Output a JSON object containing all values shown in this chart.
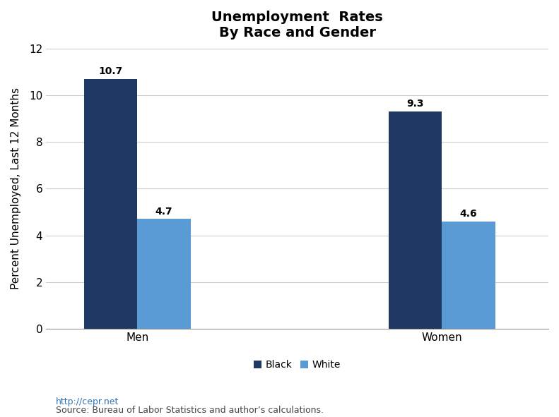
{
  "title": "Unemployment  Rates\nBy Race and Gender",
  "categories": [
    "Men",
    "Women"
  ],
  "black_values": [
    10.7,
    9.3
  ],
  "white_values": [
    4.7,
    4.6
  ],
  "black_color": "#1F3864",
  "white_color": "#5B9BD5",
  "ylabel": "Percent Unemployed, Last 12 Months",
  "ylim": [
    0,
    12
  ],
  "yticks": [
    0,
    2,
    4,
    6,
    8,
    10,
    12
  ],
  "legend_labels": [
    "Black",
    "White"
  ],
  "bar_width": 0.35,
  "group_positions": [
    1,
    3
  ],
  "footnote_line1": "http://cepr.net",
  "footnote_line2": "Source: Bureau of Labor Statistics and author’s calculations.",
  "title_fontsize": 14,
  "axis_fontsize": 11,
  "label_fontsize": 10,
  "tick_fontsize": 11,
  "footnote_fontsize": 9,
  "background_color": "#FFFFFF"
}
